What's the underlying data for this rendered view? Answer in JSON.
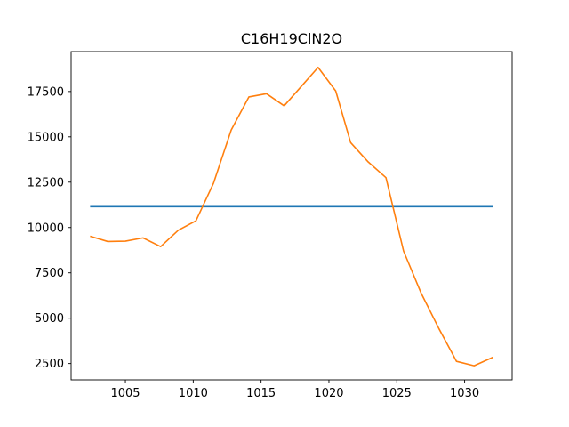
{
  "chart_data": {
    "type": "line",
    "title": "C16H19ClN2O",
    "xlabel": "",
    "ylabel": "",
    "xlim": [
      1001,
      1033.5
    ],
    "ylim": [
      1600,
      19700
    ],
    "xticks": [
      1005,
      1010,
      1015,
      1020,
      1025,
      1030
    ],
    "yticks": [
      2500,
      5000,
      7500,
      10000,
      12500,
      15000,
      17500
    ],
    "grid": false,
    "series": [
      {
        "color": "#1f77b4",
        "x": [
          1002.4,
          1032.1
        ],
        "y": [
          11150,
          11150
        ]
      },
      {
        "color": "#ff7f0e",
        "x": [
          1002.4,
          1003.7,
          1005.0,
          1006.3,
          1007.6,
          1008.9,
          1010.2,
          1011.5,
          1012.8,
          1014.1,
          1015.4,
          1016.7,
          1017.9,
          1019.2,
          1020.5,
          1021.6,
          1022.9,
          1024.2,
          1025.5,
          1026.8,
          1028.1,
          1029.4,
          1030.7,
          1032.1
        ],
        "y": [
          9520,
          9230,
          9250,
          9430,
          8950,
          9850,
          10370,
          12450,
          15380,
          17200,
          17380,
          16710,
          17730,
          18830,
          17530,
          14680,
          13610,
          12750,
          8700,
          6370,
          4430,
          2620,
          2380,
          2850
        ]
      }
    ]
  }
}
